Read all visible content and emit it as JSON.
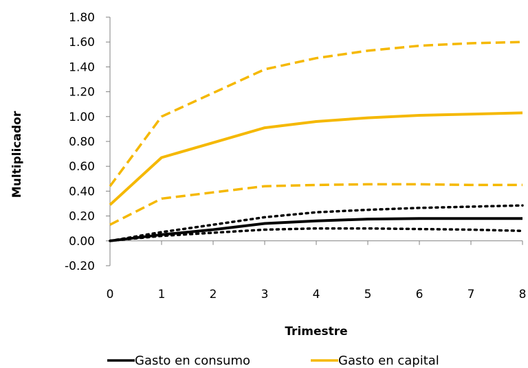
{
  "chart_data": {
    "type": "line",
    "xlabel": "Trimestre",
    "ylabel": "Multiplicador",
    "x": [
      0,
      1,
      2,
      3,
      4,
      5,
      6,
      7,
      8
    ],
    "x_ticks": [
      "0",
      "1",
      "2",
      "3",
      "4",
      "5",
      "6",
      "7",
      "8"
    ],
    "y_ticks": [
      "1.80",
      "1.60",
      "1.40",
      "1.20",
      "1.00",
      "0.80",
      "0.60",
      "0.40",
      "0.20",
      "0.00",
      "-0.20"
    ],
    "ylim": [
      -0.2,
      1.8
    ],
    "xlim": [
      0,
      8
    ],
    "grid": false,
    "legend_position": "bottom",
    "series": [
      {
        "name": "Gasto en consumo",
        "role": "estimate",
        "color": "#000000",
        "style": "solid",
        "values": [
          0.0,
          0.05,
          0.09,
          0.14,
          0.16,
          0.175,
          0.18,
          0.18,
          0.18
        ]
      },
      {
        "role": "upper band",
        "color": "#000000",
        "style": "dotted",
        "values": [
          0.0,
          0.07,
          0.13,
          0.19,
          0.23,
          0.25,
          0.265,
          0.275,
          0.285
        ]
      },
      {
        "role": "lower band",
        "color": "#000000",
        "style": "dotted",
        "values": [
          0.0,
          0.04,
          0.065,
          0.09,
          0.1,
          0.1,
          0.095,
          0.09,
          0.08
        ]
      },
      {
        "name": "Gasto en capital",
        "role": "estimate",
        "color": "#F5B800",
        "style": "solid",
        "values": [
          0.29,
          0.67,
          0.79,
          0.91,
          0.96,
          0.99,
          1.01,
          1.02,
          1.03
        ]
      },
      {
        "role": "upper band",
        "color": "#F5B800",
        "style": "dashed",
        "values": [
          0.44,
          1.0,
          1.19,
          1.38,
          1.47,
          1.53,
          1.57,
          1.59,
          1.6
        ]
      },
      {
        "role": "lower band",
        "color": "#F5B800",
        "style": "dashed",
        "values": [
          0.13,
          0.34,
          0.39,
          0.44,
          0.45,
          0.455,
          0.455,
          0.45,
          0.45
        ]
      }
    ]
  }
}
